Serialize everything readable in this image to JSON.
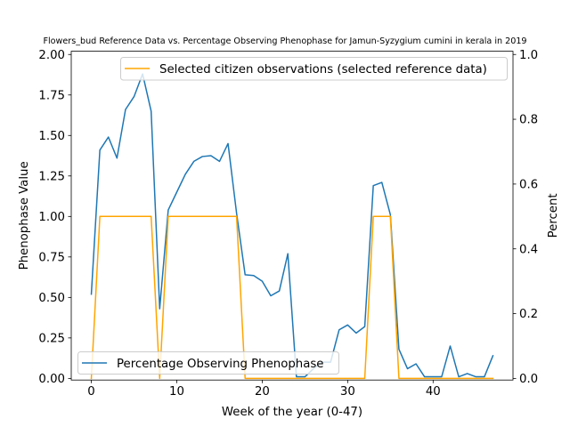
{
  "chart_data": {
    "type": "line",
    "title": "Flowers_bud Reference Data vs. Percentage Observing Phenophase for Jamun-Syzygium cumini in kerala in 2019",
    "xlabel": "Week of the year (0-47)",
    "ylabel_left": "Phenophase Value",
    "ylabel_right": "Percent",
    "xlim": [
      -2.35,
      49.35
    ],
    "ylim_left": [
      -0.01,
      2.02
    ],
    "ylim_right": [
      -0.005,
      1.01
    ],
    "x_ticks": [
      0,
      10,
      20,
      30,
      40
    ],
    "x_tick_labels": [
      "0",
      "10",
      "20",
      "30",
      "40"
    ],
    "y_left_ticks": [
      0,
      0.25,
      0.5,
      0.75,
      1.0,
      1.25,
      1.5,
      1.75,
      2.0
    ],
    "y_left_tick_labels": [
      "0.00",
      "0.25",
      "0.50",
      "0.75",
      "1.00",
      "1.25",
      "1.50",
      "1.75",
      "2.00"
    ],
    "y_right_ticks": [
      0,
      0.2,
      0.4,
      0.6,
      0.8,
      1.0
    ],
    "y_right_tick_labels": [
      "0.0",
      "0.2",
      "0.4",
      "0.6",
      "0.8",
      "1.0"
    ],
    "grid": false,
    "series": [
      {
        "name": "Percentage Observing Phenophase",
        "axis": "left",
        "color": "#1f77b4",
        "x": [
          0,
          1,
          2,
          3,
          4,
          5,
          6,
          7,
          8,
          9,
          10,
          11,
          12,
          13,
          14,
          15,
          16,
          17,
          18,
          19,
          20,
          21,
          22,
          23,
          24,
          25,
          26,
          27,
          28,
          29,
          30,
          31,
          32,
          33,
          34,
          35,
          36,
          37,
          38,
          39,
          40,
          41,
          42,
          43,
          44,
          45,
          46,
          47
        ],
        "values": [
          0.52,
          1.41,
          1.49,
          1.36,
          1.66,
          1.74,
          1.88,
          1.65,
          0.43,
          1.04,
          1.15,
          1.26,
          1.34,
          1.37,
          1.375,
          1.34,
          1.45,
          1.02,
          0.64,
          0.635,
          0.6,
          0.51,
          0.54,
          0.77,
          0.01,
          0.01,
          0.06,
          0.1,
          0.1,
          0.3,
          0.33,
          0.28,
          0.32,
          1.19,
          1.21,
          1.01,
          0.18,
          0.06,
          0.09,
          0.01,
          0.01,
          0.01,
          0.2,
          0.01,
          0.03,
          0.01,
          0.01,
          0.14
        ]
      },
      {
        "name": "Selected citizen observations (selected reference data)",
        "axis": "right",
        "color": "#ffa500",
        "x": [
          0,
          1,
          2,
          3,
          4,
          5,
          6,
          7,
          8,
          9,
          10,
          11,
          12,
          13,
          14,
          15,
          16,
          17,
          18,
          19,
          20,
          21,
          22,
          23,
          24,
          25,
          26,
          27,
          28,
          29,
          30,
          31,
          32,
          33,
          34,
          35,
          36,
          37,
          38,
          39,
          40,
          41,
          42,
          43,
          44,
          45,
          46,
          47
        ],
        "values": [
          0,
          0.5,
          0.5,
          0.5,
          0.5,
          0.5,
          0.5,
          0.5,
          0,
          0.5,
          0.5,
          0.5,
          0.5,
          0.5,
          0.5,
          0.5,
          0.5,
          0.5,
          0,
          0,
          0,
          0,
          0,
          0,
          0,
          0,
          0,
          0,
          0,
          0,
          0,
          0,
          0,
          0.5,
          0.5,
          0.5,
          0,
          0,
          0,
          0,
          0,
          0,
          0,
          0,
          0,
          0,
          0,
          0
        ]
      }
    ],
    "legends": {
      "left_axis_legend_location": "lower-left",
      "right_axis_legend_location": "upper-right"
    }
  }
}
